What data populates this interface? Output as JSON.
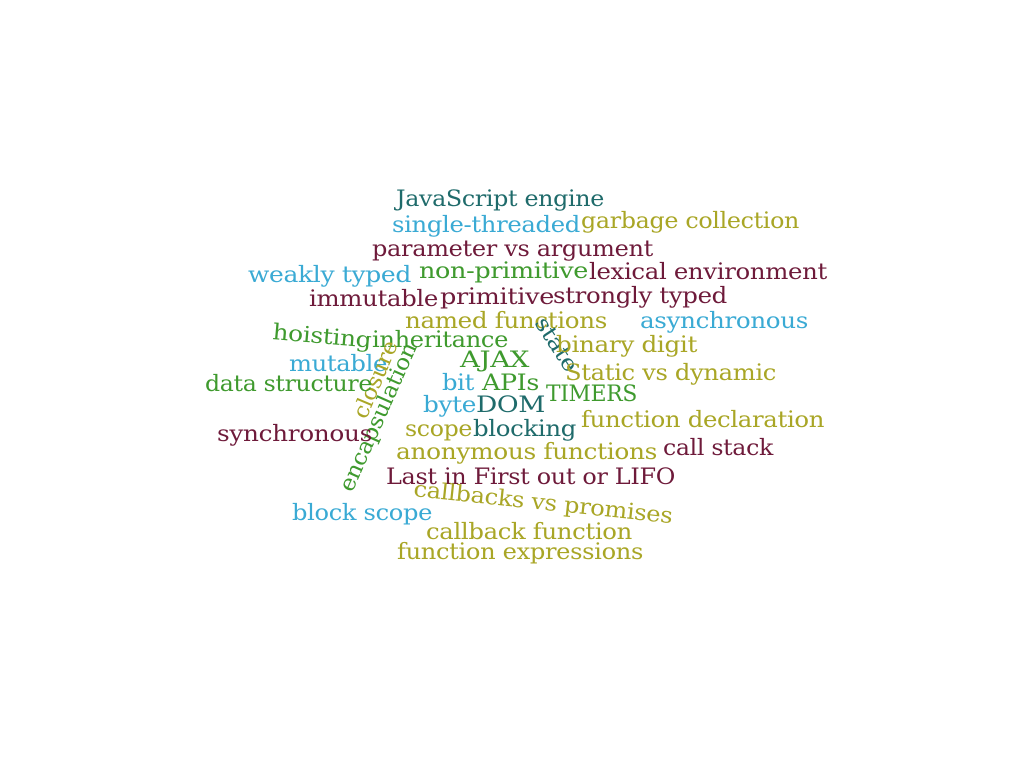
{
  "palette": {
    "teal": "#1f6b6b",
    "sky": "#3aaad4",
    "olive": "#a9a626",
    "plum": "#6e1a3a",
    "green": "#3f9a2e"
  },
  "words": [
    {
      "id": "javascript-engine",
      "text": "JavaScript engine",
      "color": "teal"
    },
    {
      "id": "single-threaded",
      "text": "single-threaded",
      "color": "sky"
    },
    {
      "id": "garbage-collection",
      "text": "garbage collection",
      "color": "olive"
    },
    {
      "id": "parameter-vs-argument",
      "text": "parameter vs argument",
      "color": "plum"
    },
    {
      "id": "weakly-typed",
      "text": "weakly typed",
      "color": "sky"
    },
    {
      "id": "non-primitive",
      "text": "non-primitive",
      "color": "green"
    },
    {
      "id": "lexical-environment",
      "text": "lexical environment",
      "color": "plum"
    },
    {
      "id": "immutable",
      "text": "immutable",
      "color": "plum"
    },
    {
      "id": "primitive",
      "text": "primitive",
      "color": "plum"
    },
    {
      "id": "strongly-typed",
      "text": "strongly typed",
      "color": "plum"
    },
    {
      "id": "hoisting",
      "text": "hoisting",
      "color": "green"
    },
    {
      "id": "inheritance",
      "text": "inheritance",
      "color": "green"
    },
    {
      "id": "named-functions",
      "text": "named functions",
      "color": "olive"
    },
    {
      "id": "asynchronous",
      "text": "asynchronous",
      "color": "sky"
    },
    {
      "id": "state",
      "text": "state",
      "color": "teal"
    },
    {
      "id": "binary-digit",
      "text": "binary digit",
      "color": "olive"
    },
    {
      "id": "mutable",
      "text": "mutable",
      "color": "sky"
    },
    {
      "id": "ajax",
      "text": "AJAX",
      "color": "green"
    },
    {
      "id": "closure",
      "text": "closure",
      "color": "olive"
    },
    {
      "id": "encapsulation",
      "text": "encapsulation",
      "color": "green"
    },
    {
      "id": "static-vs-dynamic",
      "text": "Static vs dynamic",
      "color": "olive"
    },
    {
      "id": "data-structure",
      "text": "data structure",
      "color": "green"
    },
    {
      "id": "bit",
      "text": "bit",
      "color": "sky"
    },
    {
      "id": "apis",
      "text": "APIs",
      "color": "green"
    },
    {
      "id": "timers",
      "text": "TIMERS",
      "color": "green"
    },
    {
      "id": "byte",
      "text": "byte",
      "color": "sky"
    },
    {
      "id": "dom",
      "text": "DOM",
      "color": "teal"
    },
    {
      "id": "function-declaration",
      "text": "function declaration",
      "color": "olive"
    },
    {
      "id": "synchronous",
      "text": "synchronous",
      "color": "plum"
    },
    {
      "id": "scope",
      "text": "scope",
      "color": "olive"
    },
    {
      "id": "blocking",
      "text": "blocking",
      "color": "teal"
    },
    {
      "id": "call-stack",
      "text": "call stack",
      "color": "plum"
    },
    {
      "id": "anonymous-functions",
      "text": "anonymous functions",
      "color": "olive"
    },
    {
      "id": "lifo",
      "text": "Last in First out or LIFO",
      "color": "plum"
    },
    {
      "id": "callbacks-vs-promises",
      "text": "callbacks vs promises",
      "color": "olive"
    },
    {
      "id": "block-scope",
      "text": "block scope",
      "color": "sky"
    },
    {
      "id": "callback-function",
      "text": "callback function",
      "color": "olive"
    },
    {
      "id": "function-expressions",
      "text": "function expressions",
      "color": "olive"
    }
  ]
}
